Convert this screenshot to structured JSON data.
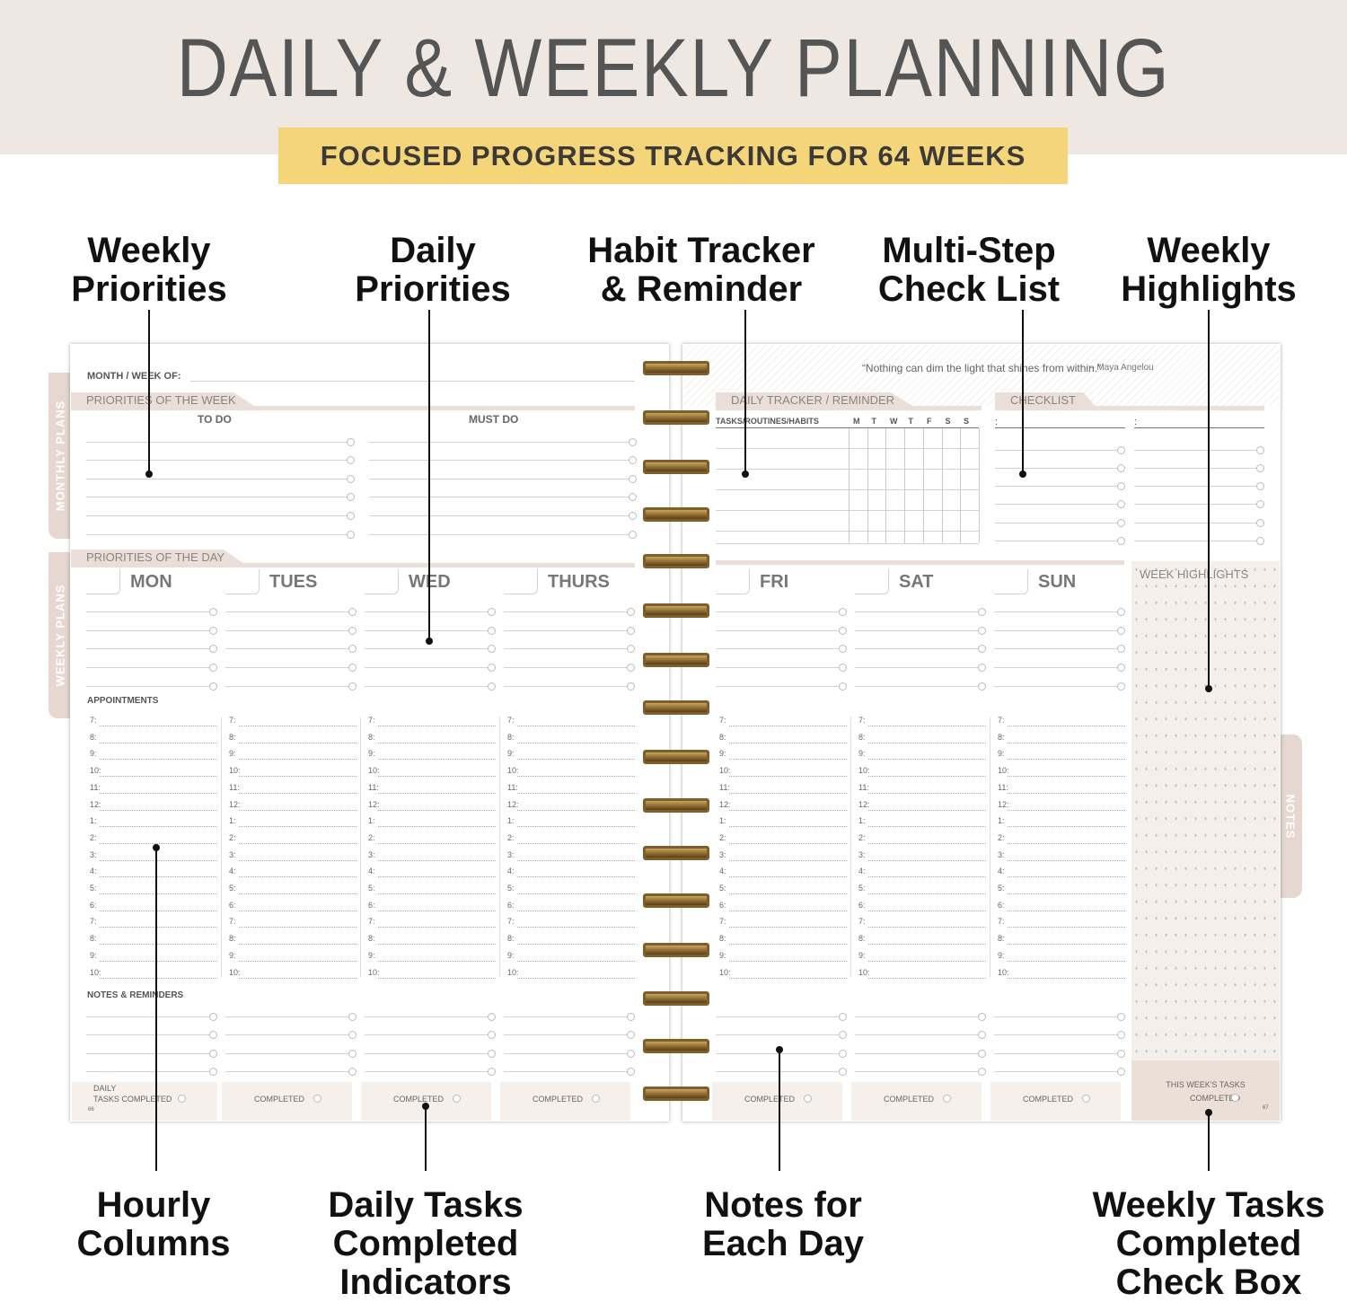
{
  "header": {
    "title": "DAILY & WEEKLY PLANNING",
    "banner": "FOCUSED PROGRESS TRACKING FOR 64 WEEKS"
  },
  "callouts_top": [
    "Weekly\nPriorities",
    "Daily\nPriorities",
    "Habit Tracker\n& Reminder",
    "Multi-Step\nCheck List",
    "Weekly\nHighlights"
  ],
  "callouts_bottom": [
    "Hourly\nColumns",
    "Daily Tasks\nCompleted\nIndicators",
    "Notes for\nEach Day",
    "Weekly Tasks\nCompleted\nCheck Box"
  ],
  "left_page": {
    "tabs": [
      "MONTHLY PLANS",
      "WEEKLY PLANS"
    ],
    "month_week_label": "MONTH / WEEK OF:",
    "priorities_week": "PRIORITIES OF THE WEEK",
    "todo": "TO DO",
    "must_do": "MUST DO",
    "priorities_day": "PRIORITIES OF THE DAY",
    "days": [
      "MON",
      "TUES",
      "WED",
      "THURS"
    ],
    "appointments": "APPOINTMENTS",
    "notes_reminders": "NOTES & REMINDERS",
    "daily_label": "DAILY",
    "first_completed": "TASKS COMPLETED",
    "completed": "COMPLETED",
    "page_number": "66"
  },
  "right_page": {
    "quote": "“Nothing can dim the light that shines from within.”",
    "quote_author": "– Maya Angelou",
    "tracker_title": "DAILY TRACKER / REMINDER",
    "tracker_header": "TASKS/ROUTINES/HABITS",
    "weekdays": [
      "M",
      "T",
      "W",
      "T",
      "F",
      "S",
      "S"
    ],
    "checklist_title": "CHECKLIST",
    "days": [
      "FRI",
      "SAT",
      "SUN"
    ],
    "week_highlights": "WEEK HIGHLIGHTS",
    "tab_notes": "NOTES",
    "week_tasks": "THIS WEEK'S TASKS",
    "completed": "COMPLETED",
    "page_number": "67"
  },
  "hours": [
    "7:",
    "8:",
    "9:",
    "10:",
    "11:",
    "12:",
    "1:",
    "2:",
    "3:",
    "4:",
    "5:",
    "6:",
    "7:",
    "8:",
    "9:",
    "10:"
  ],
  "colors": {
    "header_bg": "#efe7e1",
    "banner": "#f4d57a",
    "accent_band": "#eadfd8",
    "ring": "#8a6a30"
  }
}
